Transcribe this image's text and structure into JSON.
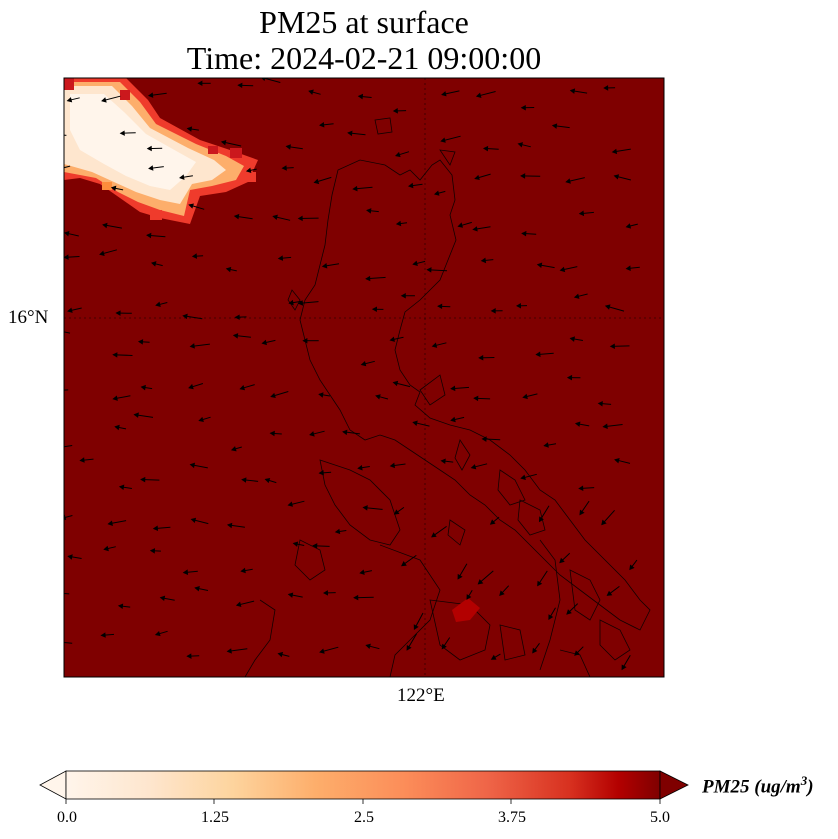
{
  "title_line1": "PM25 at surface",
  "title_line2": "Time: 2024-02-21 09:00:00",
  "map": {
    "background_color": "#7f0000",
    "gridline_lat_label": "16°N",
    "gridline_lon_label": "122°E",
    "plume_colors": [
      "#fff5eb",
      "#fee6ce",
      "#fdd0a2",
      "#fdae6b",
      "#fd8d3c",
      "#ef3b2c",
      "#cb181d"
    ]
  },
  "colorbar": {
    "ticks": [
      "0.0",
      "1.25",
      "2.5",
      "3.75",
      "5.0"
    ],
    "label_main": "PM25 (ug/m",
    "label_sup": "3",
    "label_end": ")",
    "colors": [
      "#fff5eb",
      "#fdd49e",
      "#fdbb84",
      "#fc8d59",
      "#ef6548",
      "#d7301f",
      "#b30000",
      "#7f0000"
    ]
  }
}
